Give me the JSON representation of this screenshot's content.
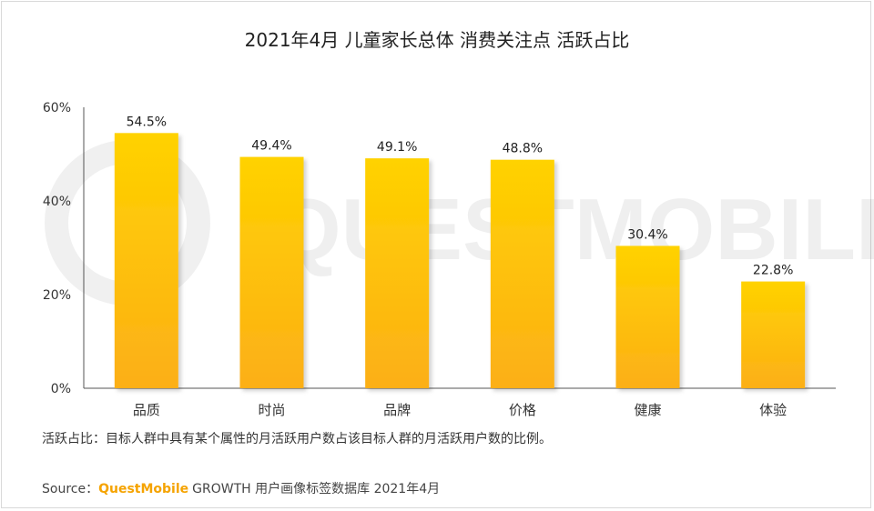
{
  "chart_data": {
    "type": "bar",
    "title": "2021年4月 儿童家长总体 消费关注点 活跃占比",
    "categories": [
      "品质",
      "时尚",
      "品牌",
      "价格",
      "健康",
      "体验"
    ],
    "values": [
      54.5,
      49.4,
      49.1,
      48.8,
      30.4,
      22.8
    ],
    "value_labels": [
      "54.5%",
      "49.4%",
      "49.1%",
      "48.8%",
      "30.4%",
      "22.8%"
    ],
    "y_ticks": [
      "0%",
      "20%",
      "40%",
      "60%"
    ],
    "ylim": [
      0,
      60
    ],
    "grid": false,
    "xlabel": "",
    "ylabel": "",
    "bar_color_top": "#ffd200",
    "bar_color_bottom": "#fcaf17"
  },
  "watermark": "QUESTMOBILE",
  "footnote": "活跃占比：目标人群中具有某个属性的月活跃用户数占该目标人群的月活跃用户数的比例。",
  "source": {
    "prefix": "Source：",
    "brand": "QuestMobile",
    "suffix": "GROWTH 用户画像标签数据库 2021年4月"
  }
}
